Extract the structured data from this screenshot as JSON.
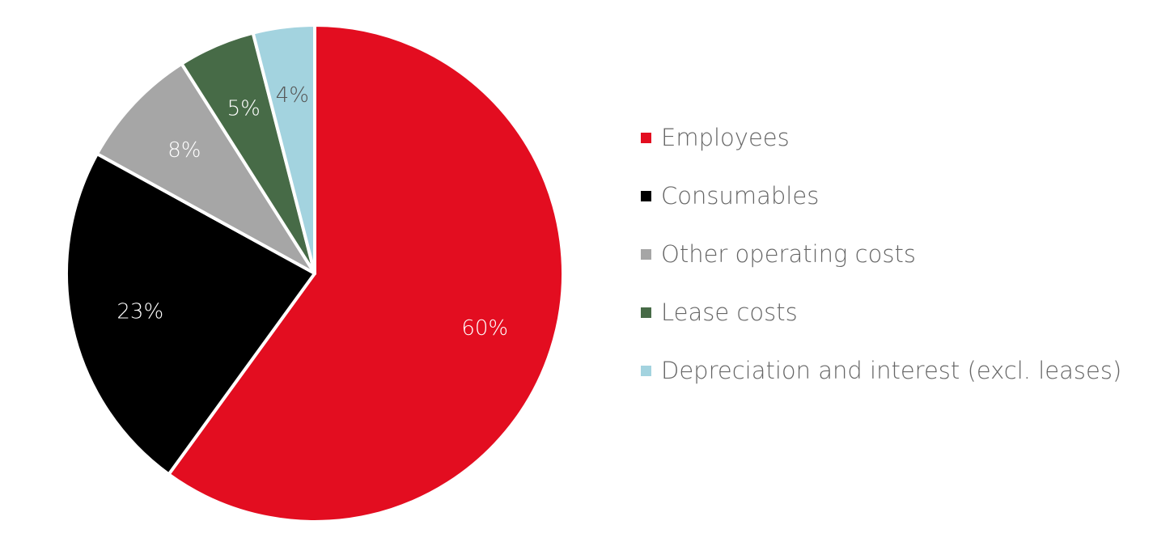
{
  "chart_data": {
    "type": "pie",
    "title": "",
    "legend_position": "right",
    "slices": [
      {
        "label": "Employees",
        "value": 60,
        "display": "60%",
        "color": "#e30d20",
        "label_color": "#ffffff"
      },
      {
        "label": "Consumables",
        "value": 23,
        "display": "23%",
        "color": "#000000",
        "label_color": "#ffffff"
      },
      {
        "label": "Other operating costs",
        "value": 8,
        "display": "8%",
        "color": "#a6a6a6",
        "label_color": "#ffffff"
      },
      {
        "label": "Lease costs",
        "value": 5,
        "display": "5%",
        "color": "#476b47",
        "label_color": "#ffffff"
      },
      {
        "label": "Depreciation and interest (excl. leases)",
        "value": 4,
        "display": "4%",
        "color": "#a3d3df",
        "label_color": "#555555"
      }
    ]
  }
}
